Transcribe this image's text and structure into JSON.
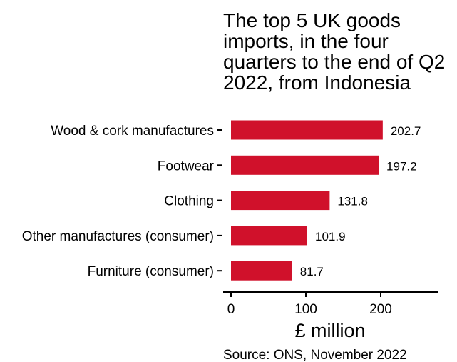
{
  "chart_data": {
    "type": "bar",
    "orientation": "horizontal",
    "title_lines": [
      "The top 5 UK goods",
      "imports, in the four",
      "quarters to the end of Q2",
      "2022, from Indonesia"
    ],
    "categories": [
      "Wood & cork manufactures",
      "Footwear",
      "Clothing",
      "Other manufactures (consumer)",
      "Furniture (consumer)"
    ],
    "values": [
      202.7,
      197.2,
      131.8,
      101.9,
      81.7
    ],
    "value_labels": [
      "202.7",
      "197.2",
      "131.8",
      "101.9",
      "81.7"
    ],
    "xlabel": "£ million",
    "xlim": [
      0,
      275
    ],
    "xticks": [
      0,
      100,
      200
    ],
    "xtick_labels": [
      "0",
      "100",
      "200"
    ],
    "bar_color": "#d0112b",
    "grid": false,
    "source": "Source: ONS, November 2022"
  }
}
